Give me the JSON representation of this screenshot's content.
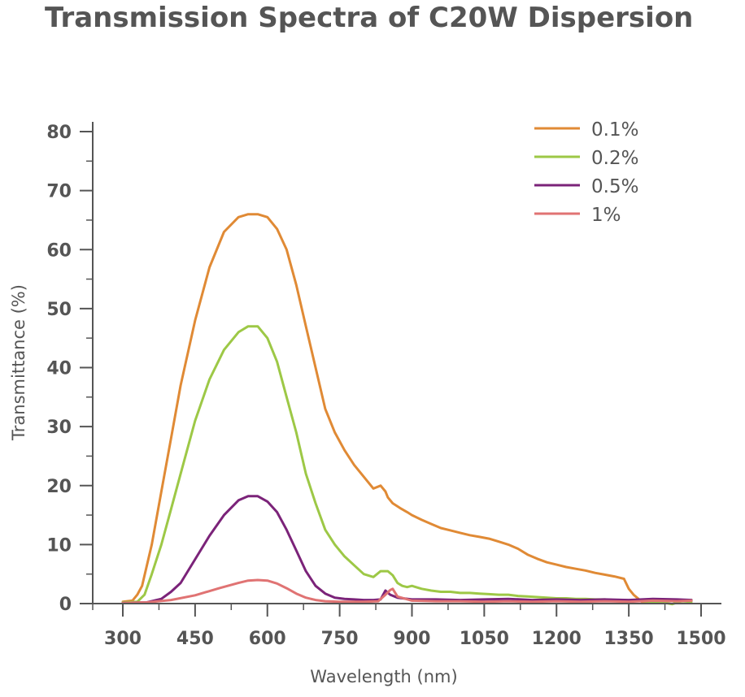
{
  "chart_data": {
    "type": "line",
    "title": "Transmission Spectra of C20W Dispersion",
    "xlabel": "Wavelength (nm)",
    "ylabel": "Transmittance (%)",
    "xlim": [
      300,
      1500
    ],
    "ylim": [
      0,
      80
    ],
    "xticks": [
      300,
      450,
      600,
      750,
      900,
      1050,
      1200,
      1350,
      1500
    ],
    "yticks": [
      0,
      10,
      20,
      30,
      40,
      50,
      60,
      70,
      80
    ],
    "legend_position": "top-right",
    "series": [
      {
        "name": "0.1%",
        "color": "#e08a35",
        "x": [
          300,
          320,
          330,
          340,
          360,
          380,
          400,
          420,
          450,
          480,
          510,
          540,
          560,
          580,
          600,
          620,
          640,
          660,
          680,
          700,
          720,
          740,
          760,
          780,
          800,
          820,
          835,
          845,
          850,
          860,
          875,
          890,
          900,
          920,
          940,
          960,
          980,
          1000,
          1020,
          1040,
          1060,
          1080,
          1100,
          1120,
          1140,
          1160,
          1180,
          1200,
          1220,
          1240,
          1260,
          1280,
          1300,
          1320,
          1340,
          1350,
          1360,
          1370,
          1375,
          1380,
          1400,
          1420,
          1440,
          1460,
          1480
        ],
        "y": [
          0.3,
          0.5,
          1.5,
          3,
          10,
          19,
          28,
          37,
          48,
          57,
          63,
          65.5,
          66,
          66,
          65.5,
          63.5,
          60,
          54,
          47,
          40,
          33,
          29,
          26,
          23.5,
          21.5,
          19.5,
          20,
          19,
          18,
          17,
          16.2,
          15.5,
          15,
          14.2,
          13.5,
          12.8,
          12.4,
          12,
          11.6,
          11.3,
          11,
          10.5,
          10,
          9.3,
          8.3,
          7.6,
          7,
          6.6,
          6.2,
          5.9,
          5.6,
          5.2,
          4.9,
          4.6,
          4.2,
          2.5,
          1.5,
          0.8,
          0.4,
          0.2,
          0.5,
          0.3,
          0.6,
          0.4,
          0.6
        ]
      },
      {
        "name": "0.2%",
        "color": "#9dc846",
        "x": [
          300,
          330,
          345,
          360,
          380,
          400,
          420,
          450,
          480,
          510,
          540,
          560,
          580,
          600,
          620,
          640,
          660,
          680,
          700,
          720,
          740,
          760,
          780,
          800,
          820,
          835,
          850,
          860,
          870,
          880,
          890,
          900,
          920,
          940,
          960,
          980,
          1000,
          1020,
          1040,
          1060,
          1080,
          1100,
          1120,
          1140,
          1160,
          1180,
          1200,
          1220,
          1240,
          1260,
          1280,
          1300,
          1320,
          1340,
          1360,
          1380,
          1400,
          1420,
          1440,
          1460,
          1480
        ],
        "y": [
          0.2,
          0.3,
          1.5,
          5,
          10,
          16,
          22,
          31,
          38,
          43,
          46,
          47,
          47,
          45,
          41,
          35,
          29,
          22,
          17,
          12.5,
          10,
          8,
          6.5,
          5,
          4.5,
          5.5,
          5.5,
          4.8,
          3.5,
          3,
          2.8,
          3,
          2.5,
          2.2,
          2,
          2,
          1.8,
          1.8,
          1.7,
          1.6,
          1.5,
          1.5,
          1.3,
          1.2,
          1.1,
          1,
          0.9,
          0.9,
          0.8,
          0.8,
          0.7,
          0.7,
          0.6,
          0.6,
          0.5,
          0.4,
          0.3,
          0.2,
          -0.1,
          0.4,
          0.3
        ]
      },
      {
        "name": "0.5%",
        "color": "#7b2379",
        "x": [
          300,
          350,
          380,
          400,
          420,
          450,
          480,
          510,
          540,
          560,
          580,
          600,
          620,
          640,
          660,
          680,
          700,
          720,
          740,
          760,
          780,
          800,
          820,
          835,
          845,
          855,
          870,
          900,
          950,
          1000,
          1050,
          1100,
          1150,
          1200,
          1250,
          1300,
          1350,
          1400,
          1450,
          1480
        ],
        "y": [
          0.1,
          0.2,
          0.8,
          2,
          3.5,
          7.5,
          11.5,
          15,
          17.5,
          18.2,
          18.2,
          17.3,
          15.5,
          12.5,
          9,
          5.5,
          3,
          1.7,
          1,
          0.8,
          0.7,
          0.6,
          0.6,
          0.7,
          2.2,
          1.5,
          1,
          0.7,
          0.7,
          0.6,
          0.7,
          0.8,
          0.6,
          0.7,
          0.6,
          0.7,
          0.6,
          0.8,
          0.7,
          0.6
        ]
      },
      {
        "name": "1%",
        "color": "#e07373",
        "x": [
          300,
          350,
          400,
          450,
          500,
          540,
          560,
          580,
          600,
          620,
          640,
          660,
          680,
          700,
          720,
          750,
          800,
          830,
          845,
          855,
          860,
          870,
          900,
          950,
          1000,
          1050,
          1100,
          1150,
          1200,
          1250,
          1300,
          1350,
          1400,
          1450,
          1480
        ],
        "y": [
          0.1,
          0.2,
          0.6,
          1.4,
          2.6,
          3.5,
          3.9,
          4,
          3.9,
          3.4,
          2.6,
          1.7,
          1,
          0.6,
          0.4,
          0.3,
          0.3,
          0.4,
          1.5,
          2.3,
          2.5,
          1.2,
          0.5,
          0.4,
          0.4,
          0.3,
          0.4,
          0.3,
          0.4,
          0.3,
          0.4,
          0.3,
          0.5,
          0.4,
          0.5
        ]
      }
    ]
  }
}
